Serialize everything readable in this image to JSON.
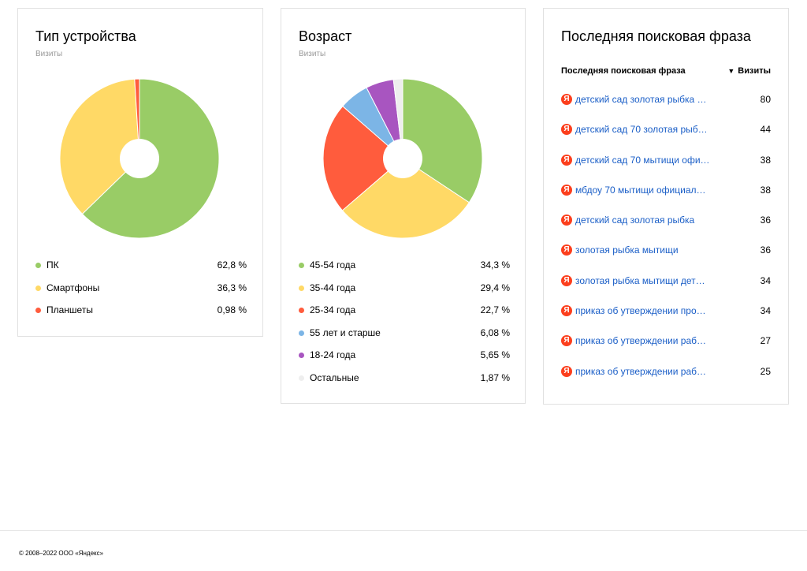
{
  "chart_data": [
    {
      "type": "pie",
      "title": "Тип устройства",
      "subtitle": "Визиты",
      "categories": [
        "ПК",
        "Смартфоны",
        "Планшеты"
      ],
      "values": [
        62.8,
        36.3,
        0.98
      ],
      "value_labels": [
        "62,8 %",
        "36,3 %",
        "0,98 %"
      ],
      "colors": [
        "#99cc66",
        "#ffd966",
        "#ff5c3d"
      ],
      "donut": true
    },
    {
      "type": "pie",
      "title": "Возраст",
      "subtitle": "Визиты",
      "categories": [
        "45-54 года",
        "35-44 года",
        "25-34 года",
        "55 лет и старше",
        "18-24 года",
        "Остальные"
      ],
      "values": [
        34.3,
        29.4,
        22.7,
        6.08,
        5.65,
        1.87
      ],
      "value_labels": [
        "34,3 %",
        "29,4 %",
        "22,7 %",
        "6,08 %",
        "5,65 %",
        "1,87 %"
      ],
      "colors": [
        "#99cc66",
        "#ffd966",
        "#ff5c3d",
        "#7cb5e6",
        "#a855c0",
        "#eeeeee"
      ],
      "donut": true
    }
  ],
  "search_table": {
    "title": "Последняя поисковая фраза",
    "col_phrase": "Последняя поисковая фраза",
    "col_visits": "Визиты",
    "sort_arrow": "▼",
    "icon_glyph": "Я",
    "icon_name": "yandex-icon",
    "rows": [
      {
        "phrase": "детский сад золотая рыбка …",
        "visits": "80"
      },
      {
        "phrase": "детский сад 70 золотая рыб…",
        "visits": "44"
      },
      {
        "phrase": "детский сад 70 мытищи офи…",
        "visits": "38"
      },
      {
        "phrase": "мбдоу 70 мытищи официал…",
        "visits": "38"
      },
      {
        "phrase": "детский сад золотая рыбка",
        "visits": "36"
      },
      {
        "phrase": "золотая рыбка мытищи",
        "visits": "36"
      },
      {
        "phrase": "золотая рыбка мытищи дет…",
        "visits": "34"
      },
      {
        "phrase": "приказ об утверждении про…",
        "visits": "34"
      },
      {
        "phrase": "приказ об утверждении раб…",
        "visits": "27"
      },
      {
        "phrase": "приказ об утверждении раб…",
        "visits": "25"
      }
    ]
  },
  "footer": {
    "copyright": "© 2008–2022 ООО «Яндекс»"
  }
}
